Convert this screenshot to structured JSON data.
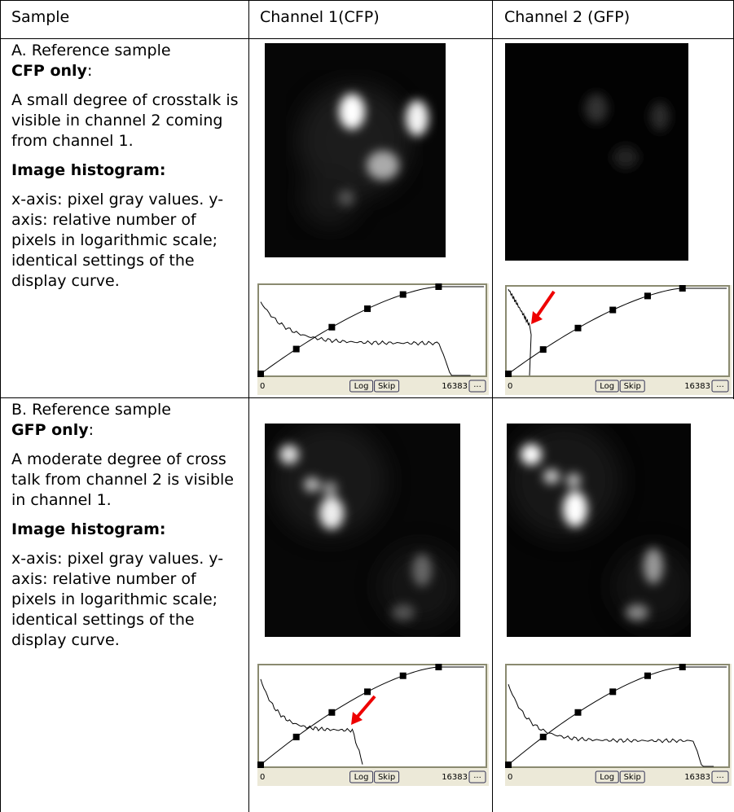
{
  "table": {
    "header": [
      "Sample",
      "Channel 1(CFP)",
      "Channel 2 (GFP)"
    ],
    "rows": [
      {
        "title": "A. Reference sample",
        "title_bold": "CFP only",
        "title_end": ":",
        "description": "A small degree of crosstalk is visible in channel 2 coming from channel 1.",
        "histogram_heading": "Image histogram:",
        "histogram_note": "x-axis: pixel gray values. y-axis: relative number of pixels in logarithmic scale; identical settings of the display curve."
      },
      {
        "title": "B. Reference sample",
        "title_bold": "GFP only",
        "title_end": ":",
        "description": "A moderate degree of cross talk from channel 2 is visible in channel 1.",
        "histogram_heading": "Image histogram:",
        "histogram_note": "x-axis: pixel gray values. y-axis: relative number of pixels in logarithmic scale; identical settings of the display curve."
      }
    ]
  },
  "histogram_controls": {
    "min": "0",
    "log": "Log",
    "skip": "Skip",
    "max": "16383",
    "more": "..."
  }
}
